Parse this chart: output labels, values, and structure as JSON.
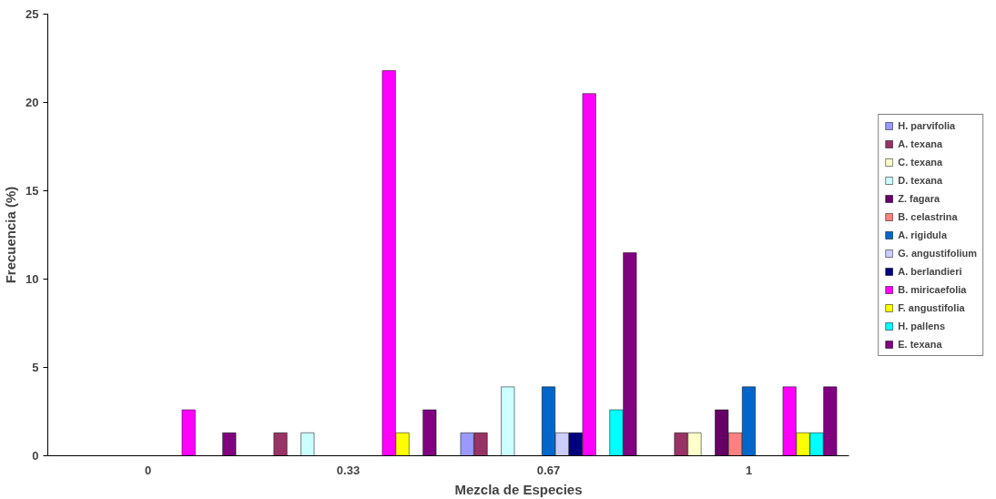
{
  "chart_data": {
    "type": "bar",
    "xlabel": "Mezcla de Especies",
    "ylabel": "Frecuencia (%)",
    "categories": [
      "0",
      "0.33",
      "0.67",
      "1"
    ],
    "ylim": [
      0,
      25
    ],
    "yticks": [
      0,
      5,
      10,
      15,
      20,
      25
    ],
    "grid": false,
    "legend": "right",
    "series": [
      {
        "name": "H. parvifolia",
        "color": "#9999ff",
        "values": [
          null,
          null,
          1.3,
          null
        ]
      },
      {
        "name": "A. texana",
        "color": "#993366",
        "values": [
          null,
          1.3,
          1.3,
          1.3
        ]
      },
      {
        "name": "C. texana",
        "color": "#ffffcc",
        "values": [
          null,
          null,
          null,
          1.3
        ]
      },
      {
        "name": "D. texana",
        "color": "#ccffff",
        "values": [
          null,
          1.3,
          3.9,
          null
        ]
      },
      {
        "name": "Z. fagara",
        "color": "#660066",
        "values": [
          null,
          null,
          null,
          2.6
        ]
      },
      {
        "name": "B. celastrina",
        "color": "#ff8080",
        "values": [
          null,
          null,
          null,
          1.3
        ]
      },
      {
        "name": "A. rigidula",
        "color": "#0066cc",
        "values": [
          null,
          null,
          3.9,
          3.9
        ]
      },
      {
        "name": "G. angustifolium",
        "color": "#ccccff",
        "values": [
          null,
          null,
          1.3,
          null
        ]
      },
      {
        "name": "A. berlandieri",
        "color": "#000080",
        "values": [
          null,
          null,
          1.3,
          null
        ]
      },
      {
        "name": "B. miricaefolia",
        "color": "#ff00ff",
        "values": [
          2.6,
          21.8,
          20.5,
          3.9
        ]
      },
      {
        "name": "F. angustifolia",
        "color": "#ffff00",
        "values": [
          null,
          1.3,
          null,
          1.3
        ]
      },
      {
        "name": "H. pallens",
        "color": "#00ffff",
        "values": [
          null,
          null,
          2.6,
          1.3
        ]
      },
      {
        "name": "E. texana",
        "color": "#800080",
        "values": [
          1.3,
          2.6,
          11.5,
          3.9
        ]
      }
    ]
  }
}
